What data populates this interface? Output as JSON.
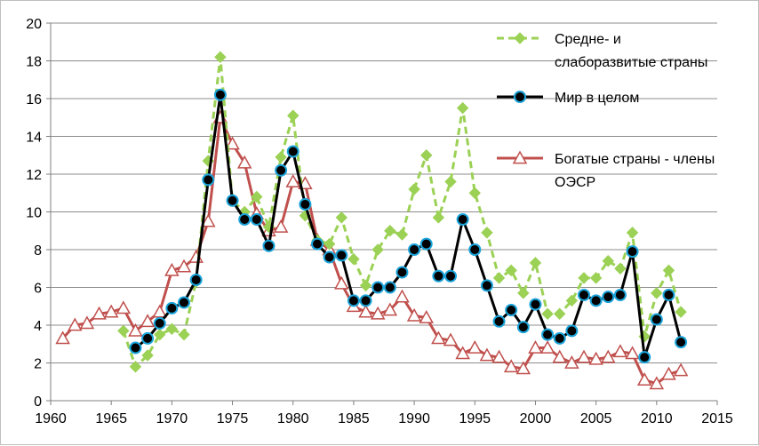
{
  "chart_data": {
    "type": "line",
    "title": "",
    "xlabel": "",
    "ylabel": "",
    "xlim": [
      1960,
      2015
    ],
    "ylim": [
      0,
      20
    ],
    "x_ticks": [
      1960,
      1965,
      1970,
      1975,
      1980,
      1985,
      1990,
      1995,
      2000,
      2005,
      2010,
      2015
    ],
    "y_ticks": [
      0,
      2,
      4,
      6,
      8,
      10,
      12,
      14,
      16,
      18,
      20
    ],
    "grid": "horizontal",
    "legend_position": "right",
    "series": [
      {
        "name": "Средне- и слаборазвитые страны",
        "legend_lines": [
          "Средне- и",
          "слаборазвитые страны"
        ],
        "color": "#9bd155",
        "marker": "diamond",
        "line_style": "dashed",
        "x": [
          1966,
          1967,
          1968,
          1969,
          1970,
          1971,
          1972,
          1973,
          1974,
          1975,
          1976,
          1977,
          1978,
          1979,
          1980,
          1981,
          1982,
          1983,
          1984,
          1985,
          1986,
          1987,
          1988,
          1989,
          1990,
          1991,
          1992,
          1993,
          1994,
          1995,
          1996,
          1997,
          1998,
          1999,
          2000,
          2001,
          2002,
          2003,
          2004,
          2005,
          2006,
          2007,
          2008,
          2009,
          2010,
          2011,
          2012
        ],
        "values": [
          3.7,
          1.8,
          2.4,
          3.5,
          3.8,
          3.5,
          6.3,
          12.7,
          18.2,
          10.6,
          10.0,
          10.8,
          9.2,
          12.9,
          15.1,
          9.8,
          8.5,
          8.3,
          9.7,
          7.5,
          6.1,
          8.0,
          9.0,
          8.8,
          11.2,
          13.0,
          9.7,
          11.6,
          15.5,
          11.0,
          8.9,
          6.5,
          6.9,
          5.7,
          7.3,
          4.6,
          4.6,
          5.3,
          6.5,
          6.5,
          7.4,
          7.0,
          8.9,
          3.4,
          5.7,
          6.9,
          4.7
        ]
      },
      {
        "name": "Мир в целом",
        "legend_lines": [
          "Мир в целом"
        ],
        "color": "#000000",
        "marker_fill": "#000000",
        "marker_stroke": "#1aa3d9",
        "marker": "circle",
        "line_style": "solid",
        "x": [
          1967,
          1968,
          1969,
          1970,
          1971,
          1972,
          1973,
          1974,
          1975,
          1976,
          1977,
          1978,
          1979,
          1980,
          1981,
          1982,
          1983,
          1984,
          1985,
          1986,
          1987,
          1988,
          1989,
          1990,
          1991,
          1992,
          1993,
          1994,
          1995,
          1996,
          1997,
          1998,
          1999,
          2000,
          2001,
          2002,
          2003,
          2004,
          2005,
          2006,
          2007,
          2008,
          2009,
          2010,
          2011,
          2012
        ],
        "values": [
          2.8,
          3.3,
          4.1,
          4.9,
          5.2,
          6.4,
          11.7,
          16.2,
          10.6,
          9.6,
          9.6,
          8.2,
          12.2,
          13.2,
          10.4,
          8.3,
          7.6,
          7.7,
          5.3,
          5.3,
          6.0,
          6.0,
          6.8,
          8.0,
          8.3,
          6.6,
          6.6,
          9.6,
          8.0,
          6.1,
          4.2,
          4.8,
          3.9,
          5.1,
          3.5,
          3.3,
          3.7,
          5.6,
          5.3,
          5.5,
          5.6,
          7.9,
          2.3,
          4.3,
          5.6,
          3.1
        ]
      },
      {
        "name": "Богатые страны - члены ОЭСР",
        "legend_lines": [
          "Богатые страны - члены",
          "ОЭСР"
        ],
        "color": "#c0504d",
        "marker": "triangle",
        "line_style": "solid",
        "x": [
          1961,
          1962,
          1963,
          1964,
          1965,
          1966,
          1967,
          1968,
          1969,
          1970,
          1971,
          1972,
          1973,
          1974,
          1975,
          1976,
          1977,
          1978,
          1979,
          1980,
          1981,
          1982,
          1983,
          1984,
          1985,
          1986,
          1987,
          1988,
          1989,
          1990,
          1991,
          1992,
          1993,
          1994,
          1995,
          1996,
          1997,
          1998,
          1999,
          2000,
          2001,
          2002,
          2003,
          2004,
          2005,
          2006,
          2007,
          2008,
          2009,
          2010,
          2011,
          2012
        ],
        "values": [
          3.3,
          4.0,
          4.1,
          4.6,
          4.7,
          4.9,
          3.7,
          4.2,
          4.7,
          6.9,
          7.1,
          7.6,
          9.5,
          15.0,
          13.6,
          12.6,
          9.9,
          9.0,
          9.2,
          11.6,
          11.5,
          8.5,
          8.0,
          6.2,
          5.0,
          4.7,
          4.6,
          4.8,
          5.5,
          4.5,
          4.4,
          3.3,
          3.2,
          2.5,
          2.8,
          2.4,
          2.3,
          1.8,
          1.7,
          2.8,
          2.8,
          2.3,
          2.0,
          2.3,
          2.2,
          2.3,
          2.6,
          2.5,
          1.1,
          0.9,
          1.4,
          1.6
        ]
      }
    ]
  }
}
